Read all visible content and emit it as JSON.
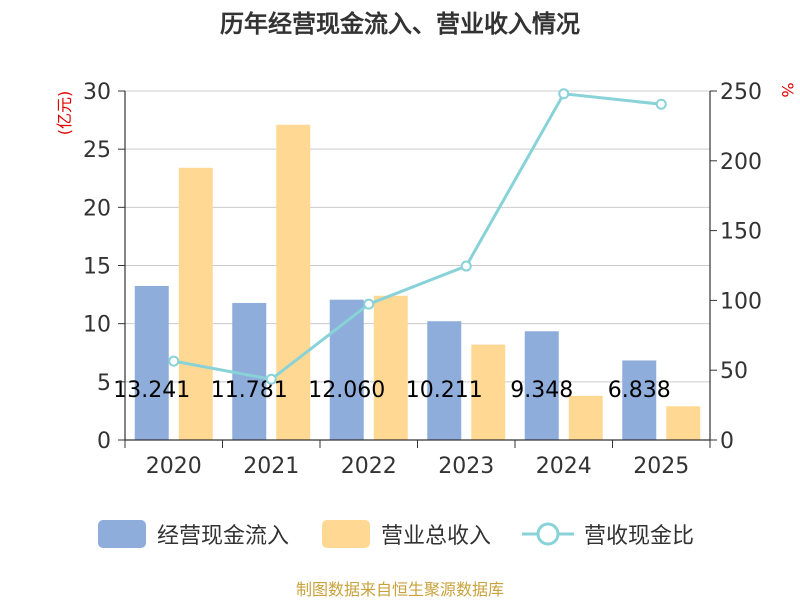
{
  "chart_data": {
    "type": "bar",
    "title": "历年经营现金流入、营业收入情况",
    "categories": [
      "2020",
      "2021",
      "2022",
      "2023",
      "2024",
      "2025"
    ],
    "left_axis": {
      "label": "(亿元)",
      "ylim": [
        0,
        30
      ],
      "ticks": [
        "0",
        "5",
        "10",
        "15",
        "20",
        "25",
        "30"
      ]
    },
    "right_axis": {
      "label": "%",
      "ylim": [
        0,
        250
      ],
      "ticks": [
        "0",
        "50",
        "100",
        "150",
        "200",
        "250"
      ]
    },
    "series": [
      {
        "name": "经营现金流入",
        "type": "bar",
        "axis": "left",
        "color": "#8EADDB",
        "values": [
          13.241,
          11.781,
          12.06,
          10.211,
          9.348,
          6.838
        ],
        "labels": [
          "13.241",
          "11.781",
          "12.060",
          "10.211",
          "9.348",
          "6.838"
        ]
      },
      {
        "name": "营业总收入",
        "type": "bar",
        "axis": "left",
        "color": "#FFD993",
        "values": [
          23.4,
          27.1,
          12.4,
          8.2,
          3.8,
          2.9
        ]
      },
      {
        "name": "营收现金比",
        "type": "line",
        "axis": "right",
        "color": "#88D2D8",
        "values": [
          56.5,
          43.5,
          97.3,
          124.6,
          248.0,
          240.5
        ]
      }
    ],
    "grid": true,
    "legend_position": "bottom"
  },
  "footer": {
    "source": "制图数据来自恒生聚源数据库"
  }
}
